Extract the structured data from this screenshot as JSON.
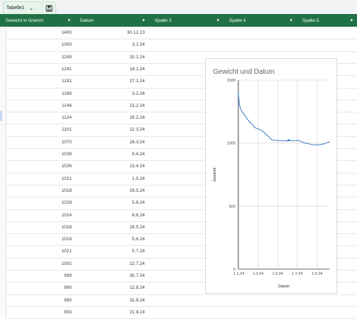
{
  "tab": {
    "label": "Tabelle1",
    "chevron": "chevron-down-icon",
    "save_icon": "sheet-save-icon"
  },
  "columns": [
    {
      "label": "Gewicht in Gramm",
      "dropdown": "▾"
    },
    {
      "label": "Datum",
      "dropdown": "▾"
    },
    {
      "label": "Spalte 3",
      "dropdown": "▾"
    },
    {
      "label": "Spalte 4",
      "dropdown": "▾"
    },
    {
      "label": "Spalte 5",
      "dropdown": "▾"
    }
  ],
  "rows": [
    {
      "gewicht": "1400",
      "datum": "30.12.23"
    },
    {
      "gewicht": "1300",
      "datum": "3.1.24"
    },
    {
      "gewicht": "1249",
      "datum": "10.1.24"
    },
    {
      "gewicht": "1241",
      "datum": "14.1.24"
    },
    {
      "gewicht": "1191",
      "datum": "27.1.24"
    },
    {
      "gewicht": "1169",
      "datum": "3.2.24"
    },
    {
      "gewicht": "1146",
      "datum": "13.2.24"
    },
    {
      "gewicht": "1124",
      "datum": "19.2.24"
    },
    {
      "gewicht": "1101",
      "datum": "12.3.24"
    },
    {
      "gewicht": "1070",
      "datum": "26.3.24"
    },
    {
      "gewicht": "1039",
      "datum": "8.4.24"
    },
    {
      "gewicht": "1026",
      "datum": "13.4.24"
    },
    {
      "gewicht": "1021",
      "datum": "1.5.24"
    },
    {
      "gewicht": "1018",
      "datum": "29.5.24"
    },
    {
      "gewicht": "1029",
      "datum": "5.6.24"
    },
    {
      "gewicht": "1024",
      "datum": "8.6.24"
    },
    {
      "gewicht": "1018",
      "datum": "29.5.24"
    },
    {
      "gewicht": "1019",
      "datum": "5.6.24"
    },
    {
      "gewicht": "1021",
      "datum": "5.7.24"
    },
    {
      "gewicht": "1002",
      "datum": "22.7.24"
    },
    {
      "gewicht": "999",
      "datum": "30.7.24"
    },
    {
      "gewicht": "990",
      "datum": "12.8.24"
    },
    {
      "gewicht": "985",
      "datum": "31.8.24"
    },
    {
      "gewicht": "993",
      "datum": "21.9.24"
    }
  ],
  "chart_data": {
    "type": "line",
    "title": "Gewicht und Datum",
    "xlabel": "Datum",
    "ylabel": "Gewicht",
    "x_ticks": [
      "1.1.24",
      "1.3.24",
      "1.5.24",
      "1.7.24",
      "1.9.24"
    ],
    "y_ticks": [
      0,
      500,
      1000,
      1500
    ],
    "ylim": [
      0,
      1500
    ],
    "xlim": [
      "30.12.23",
      "10.10.24"
    ],
    "grid": true,
    "series": [
      {
        "x": [
          "30.12.23",
          "3.1.24",
          "10.1.24",
          "14.1.24",
          "27.1.24",
          "3.2.24",
          "13.2.24",
          "19.2.24",
          "12.3.24",
          "26.3.24",
          "8.4.24",
          "13.4.24",
          "1.5.24",
          "29.5.24",
          "5.6.24",
          "8.6.24",
          "29.5.24",
          "5.6.24",
          "5.7.24",
          "22.7.24",
          "30.7.24",
          "12.8.24",
          "31.8.24",
          "21.9.24",
          "10.10.24"
        ],
        "y": [
          1400,
          1300,
          1249,
          1241,
          1191,
          1169,
          1146,
          1124,
          1101,
          1070,
          1039,
          1026,
          1021,
          1018,
          1029,
          1024,
          1018,
          1019,
          1021,
          1002,
          999,
          990,
          985,
          993,
          1010
        ]
      }
    ],
    "color": "#4a86c8"
  }
}
